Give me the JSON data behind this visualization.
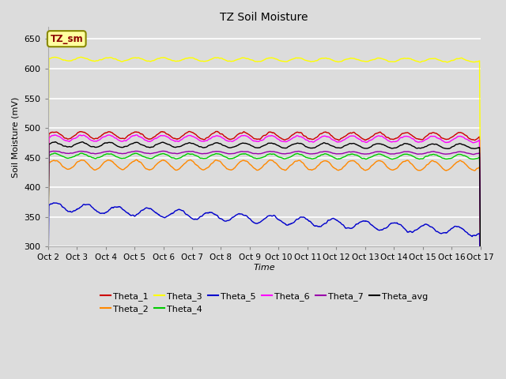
{
  "title": "TZ Soil Moisture",
  "xlabel": "Time",
  "ylabel": "Soil Moisture (mV)",
  "ylim": [
    300,
    670
  ],
  "yticks": [
    300,
    350,
    400,
    450,
    500,
    550,
    600,
    650
  ],
  "n_points": 960,
  "date_labels": [
    "Oct 2",
    "Oct 3",
    "Oct 4",
    "Oct 5",
    "Oct 6",
    "Oct 7",
    "Oct 8",
    "Oct 9",
    "Oct 10",
    "Oct 11",
    "Oct 12",
    "Oct 13",
    "Oct 14",
    "Oct 15",
    "Oct 16",
    "Oct 17"
  ],
  "label_box_text": "TZ_sm",
  "background_color": "#dcdcdc",
  "fig_background": "#dcdcdc",
  "lines": {
    "Theta_1": {
      "color": "#cc0000",
      "base": 488,
      "trend": -0.006,
      "amp": 6,
      "freq": 16,
      "noise": 1.2
    },
    "Theta_2": {
      "color": "#ff8800",
      "base": 438,
      "trend": -0.004,
      "amp": 8,
      "freq": 16,
      "noise": 1.0
    },
    "Theta_3": {
      "color": "#ffff00",
      "base": 616,
      "trend": -0.005,
      "amp": 3,
      "freq": 16,
      "noise": 0.8
    },
    "Theta_4": {
      "color": "#00cc00",
      "base": 453,
      "trend": -0.004,
      "amp": 4,
      "freq": 16,
      "noise": 0.8
    },
    "Theta_5": {
      "color": "#0000cc",
      "base": 368,
      "trend": -0.12,
      "amp": 7,
      "freq": 14,
      "noise": 1.5
    },
    "Theta_6": {
      "color": "#ff00ff",
      "base": 483,
      "trend": -0.006,
      "amp": 5,
      "freq": 16,
      "noise": 1.0
    },
    "Theta_7": {
      "color": "#9900aa",
      "base": 459,
      "trend": -0.003,
      "amp": 2,
      "freq": 16,
      "noise": 0.5
    },
    "Theta_avg": {
      "color": "#000000",
      "base": 472,
      "trend": -0.008,
      "amp": 4,
      "freq": 16,
      "noise": 0.8
    }
  },
  "line_order": [
    "Theta_1",
    "Theta_2",
    "Theta_3",
    "Theta_4",
    "Theta_5",
    "Theta_6",
    "Theta_7",
    "Theta_avg"
  ],
  "legend_order": [
    "Theta_1",
    "Theta_2",
    "Theta_3",
    "Theta_4",
    "Theta_5",
    "Theta_6",
    "Theta_7",
    "Theta_avg"
  ]
}
